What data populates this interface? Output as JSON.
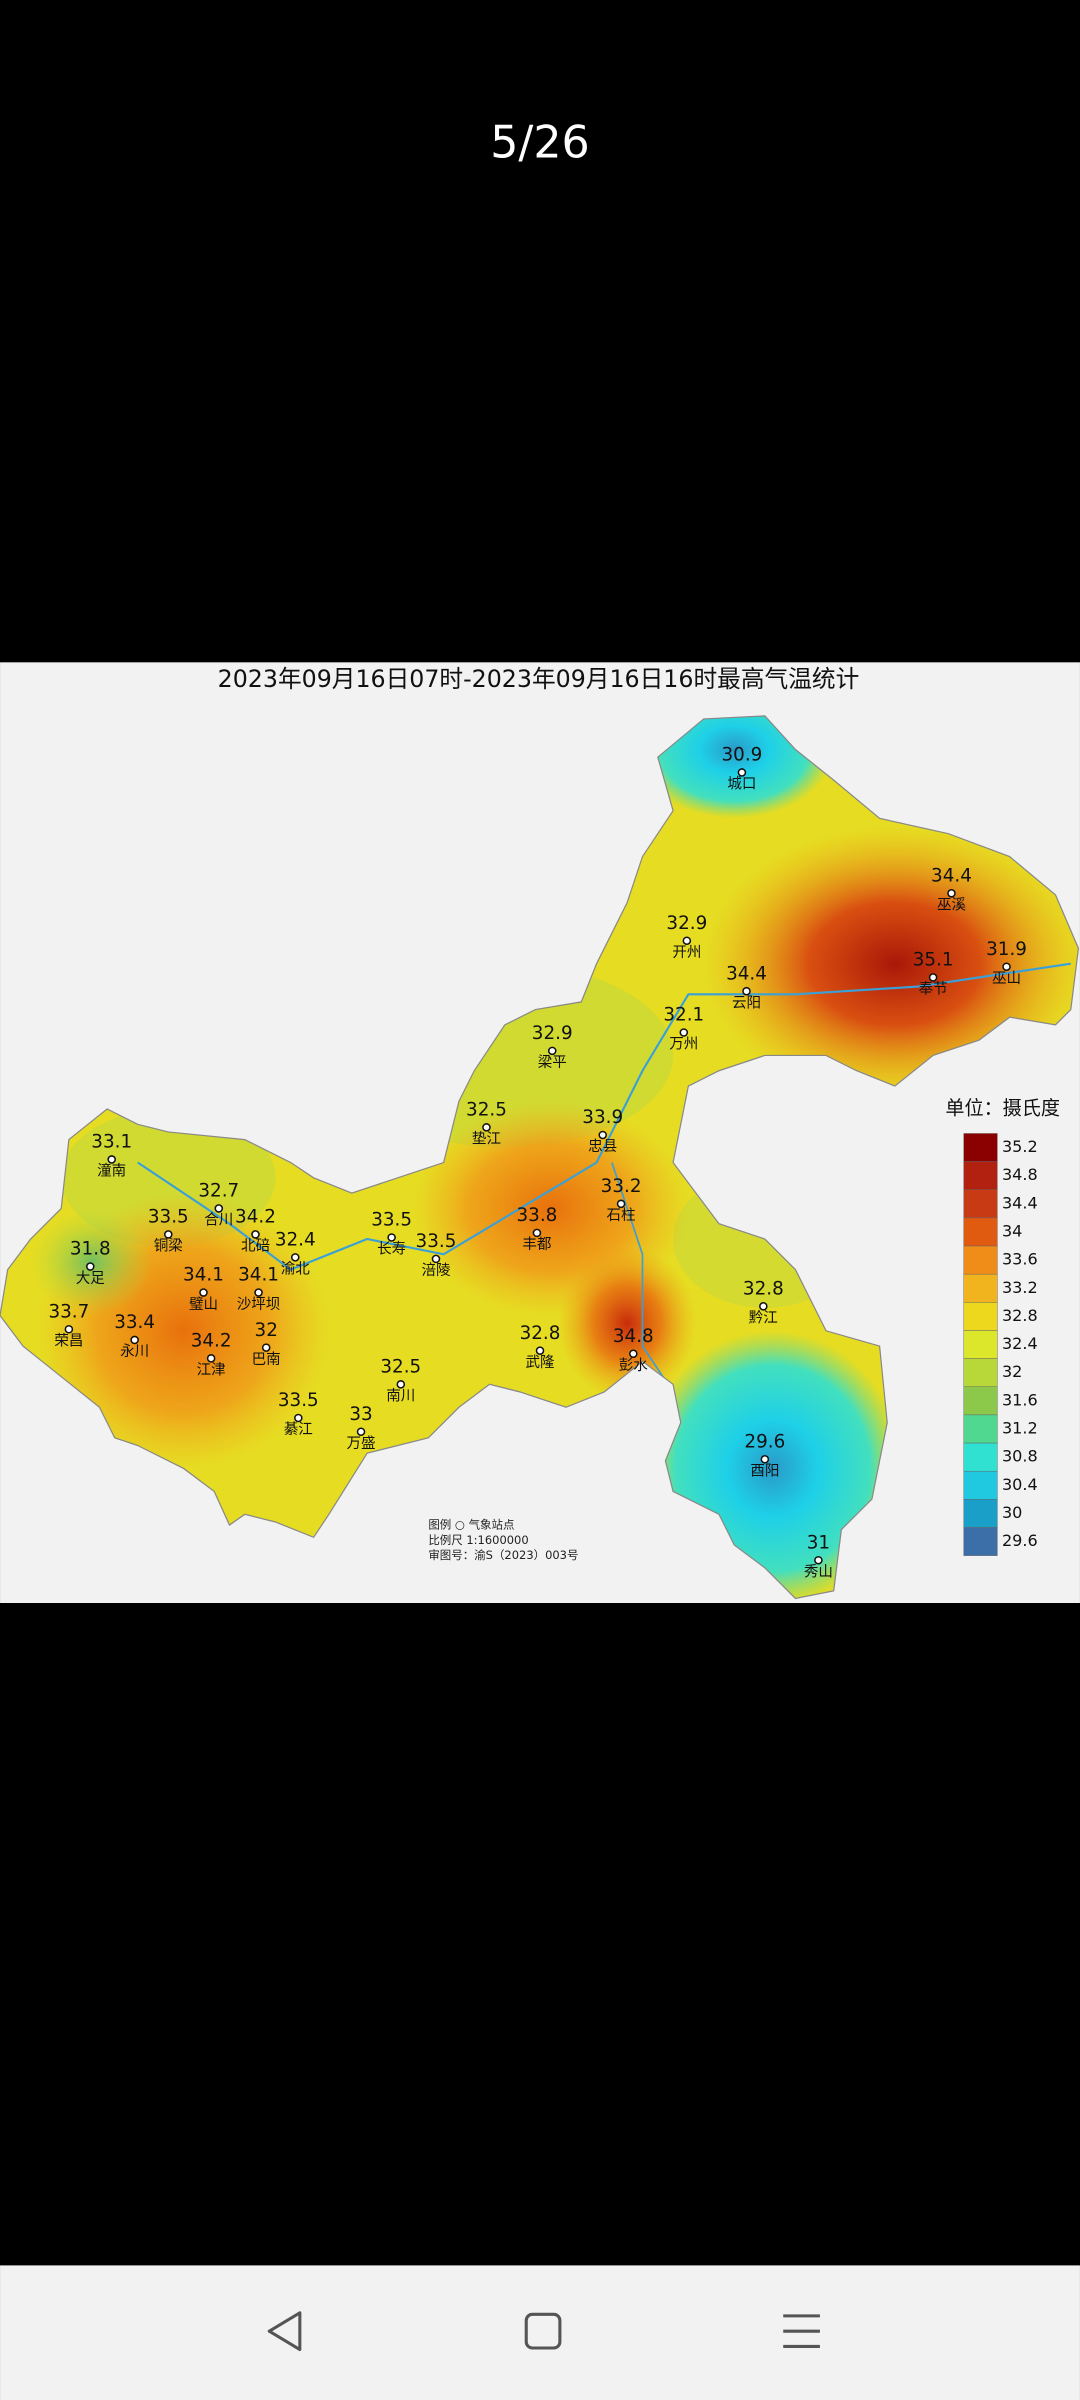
{
  "header": {
    "counter": "5/26"
  },
  "image": {
    "title": "2023年09月16日07时-2023年09月16日16时最高气温统计",
    "stations": [
      {
        "value": 30.9,
        "name": "城口"
      },
      {
        "value": 34.4,
        "name": "巫溪"
      },
      {
        "value": 32.9,
        "name": "开州"
      },
      {
        "value": 31.9,
        "name": "巫山"
      },
      {
        "value": 35.1,
        "name": "奉节"
      },
      {
        "value": 34.4,
        "name": "云阳"
      },
      {
        "value": 32.1,
        "name": "万州"
      },
      {
        "value": 32.9,
        "name": "梁平"
      },
      {
        "value": 32.5,
        "name": "垫江"
      },
      {
        "value": 33.9,
        "name": "忠县"
      },
      {
        "value": 33.1,
        "name": "潼南"
      },
      {
        "value": 32.7,
        "name": "合川"
      },
      {
        "value": 33.2,
        "name": "石柱"
      },
      {
        "value": 33.5,
        "name": "铜梁"
      },
      {
        "value": 34.2,
        "name": "北碚"
      },
      {
        "value": 33.5,
        "name": "长寿"
      },
      {
        "value": 33.8,
        "name": "丰都"
      },
      {
        "value": 32.4,
        "name": "渝北"
      },
      {
        "value": 33.5,
        "name": "涪陵"
      },
      {
        "value": 31.8,
        "name": "大足"
      },
      {
        "value": 34.1,
        "name": "璧山"
      },
      {
        "value": 34.1,
        "name": "沙坪坝"
      },
      {
        "value": 33.7,
        "name": "荣昌"
      },
      {
        "value": 33.4,
        "name": "永川"
      },
      {
        "value": 32.8,
        "name": "黔江"
      },
      {
        "value": 32,
        "name": "巴南"
      },
      {
        "value": 32.8,
        "name": "武隆"
      },
      {
        "value": 34.8,
        "name": "彭水"
      },
      {
        "value": 34.2,
        "name": "江津"
      },
      {
        "value": 32.5,
        "name": "南川"
      },
      {
        "value": 33.5,
        "name": "綦江"
      },
      {
        "value": 33,
        "name": "万盛"
      },
      {
        "value": 29.6,
        "name": "酉阳"
      },
      {
        "value": 31,
        "name": "秀山"
      }
    ],
    "legend": {
      "unit": "单位：摄氏度",
      "items": [
        {
          "value": 35.2,
          "color": "#8b0000"
        },
        {
          "value": 34.8,
          "color": "#b22010"
        },
        {
          "value": 34.4,
          "color": "#c83a14"
        },
        {
          "value": 34,
          "color": "#e05a10"
        },
        {
          "value": 33.6,
          "color": "#f08c18"
        },
        {
          "value": 33.2,
          "color": "#f2b41e"
        },
        {
          "value": 32.8,
          "color": "#eed81e"
        },
        {
          "value": 32.4,
          "color": "#dce62a"
        },
        {
          "value": 32,
          "color": "#b8d83a"
        },
        {
          "value": 31.6,
          "color": "#8cc84a"
        },
        {
          "value": 31.2,
          "color": "#50d890"
        },
        {
          "value": 30.8,
          "color": "#30e0d0"
        },
        {
          "value": 30.4,
          "color": "#20c8e0"
        },
        {
          "value": 30,
          "color": "#1aa0c8"
        },
        {
          "value": 29.6,
          "color": "#3c6ea8"
        }
      ]
    },
    "footer": [
      "图例  ○  气象站点",
      "比例尺  1:1600000",
      "审图号：渝S（2023）003号"
    ]
  }
}
